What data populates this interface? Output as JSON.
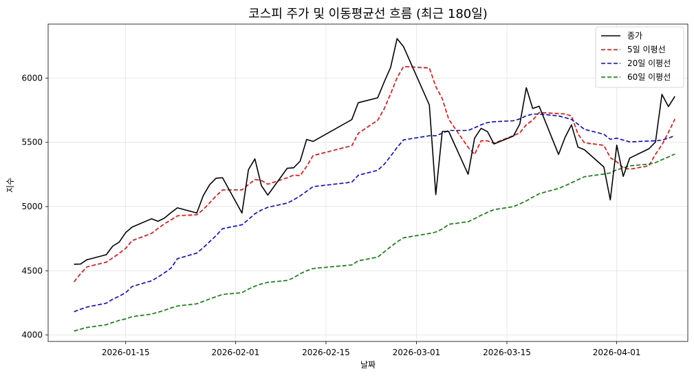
{
  "chart_data": {
    "type": "line",
    "title": "코스피 주가 및 이동평균선 흐름 (최근 180일)",
    "xlabel": "날짜",
    "ylabel": "지수",
    "xlim": [
      "2026-01-03",
      "2026-04-12"
    ],
    "ylim": [
      3950,
      6420
    ],
    "grid": true,
    "legend_position": "top-right",
    "x_ticks": [
      "2026-01-15",
      "2026-02-01",
      "2026-02-15",
      "2026-03-01",
      "2026-03-15",
      "2026-04-01"
    ],
    "y_ticks": [
      4000,
      4500,
      5000,
      5500,
      6000
    ],
    "series": [
      {
        "name": "종가",
        "color": "#000000",
        "dash": "solid",
        "points": [
          [
            "2026-01-07",
            4551
          ],
          [
            "2026-01-08",
            4552
          ],
          [
            "2026-01-09",
            4586
          ],
          [
            "2026-01-12",
            4625
          ],
          [
            "2026-01-13",
            4692
          ],
          [
            "2026-01-14",
            4723
          ],
          [
            "2026-01-15",
            4797
          ],
          [
            "2026-01-16",
            4840
          ],
          [
            "2026-01-19",
            4905
          ],
          [
            "2026-01-20",
            4885
          ],
          [
            "2026-01-21",
            4910
          ],
          [
            "2026-01-22",
            4952
          ],
          [
            "2026-01-23",
            4990
          ],
          [
            "2026-01-26",
            4950
          ],
          [
            "2026-01-27",
            5085
          ],
          [
            "2026-01-28",
            5170
          ],
          [
            "2026-01-29",
            5221
          ],
          [
            "2026-01-30",
            5224
          ],
          [
            "2026-02-02",
            4949
          ],
          [
            "2026-02-03",
            5287
          ],
          [
            "2026-02-04",
            5371
          ],
          [
            "2026-02-05",
            5163
          ],
          [
            "2026-02-06",
            5089
          ],
          [
            "2026-02-09",
            5298
          ],
          [
            "2026-02-10",
            5302
          ],
          [
            "2026-02-11",
            5354
          ],
          [
            "2026-02-12",
            5522
          ],
          [
            "2026-02-13",
            5507
          ],
          [
            "2026-02-19",
            5677
          ],
          [
            "2026-02-20",
            5808
          ],
          [
            "2026-02-23",
            5846
          ],
          [
            "2026-02-24",
            5969
          ],
          [
            "2026-02-25",
            6083
          ],
          [
            "2026-02-26",
            6307
          ],
          [
            "2026-02-27",
            6244
          ],
          [
            "2026-03-03",
            5791
          ],
          [
            "2026-03-04",
            5093
          ],
          [
            "2026-03-05",
            5584
          ],
          [
            "2026-03-06",
            5584
          ],
          [
            "2026-03-09",
            5251
          ],
          [
            "2026-03-10",
            5532
          ],
          [
            "2026-03-11",
            5609
          ],
          [
            "2026-03-12",
            5583
          ],
          [
            "2026-03-13",
            5487
          ],
          [
            "2026-03-16",
            5549
          ],
          [
            "2026-03-17",
            5643
          ],
          [
            "2026-03-18",
            5925
          ],
          [
            "2026-03-19",
            5763
          ],
          [
            "2026-03-20",
            5781
          ],
          [
            "2026-03-23",
            5405
          ],
          [
            "2026-03-24",
            5538
          ],
          [
            "2026-03-25",
            5636
          ],
          [
            "2026-03-26",
            5462
          ],
          [
            "2026-03-27",
            5442
          ],
          [
            "2026-03-30",
            5308
          ],
          [
            "2026-03-31",
            5052
          ],
          [
            "2026-04-01",
            5478
          ],
          [
            "2026-04-02",
            5235
          ],
          [
            "2026-04-03",
            5377
          ],
          [
            "2026-04-06",
            5450
          ],
          [
            "2026-04-07",
            5502
          ],
          [
            "2026-04-08",
            5873
          ],
          [
            "2026-04-09",
            5778
          ],
          [
            "2026-04-10",
            5858
          ]
        ]
      },
      {
        "name": "5일 이평선",
        "color": "#ff0000",
        "dash": "dashed",
        "points": [
          [
            "2026-01-07",
            4414
          ],
          [
            "2026-01-08",
            4478
          ],
          [
            "2026-01-09",
            4531
          ],
          [
            "2026-01-12",
            4567
          ],
          [
            "2026-01-13",
            4601
          ],
          [
            "2026-01-14",
            4636
          ],
          [
            "2026-01-15",
            4675
          ],
          [
            "2026-01-16",
            4735
          ],
          [
            "2026-01-19",
            4791
          ],
          [
            "2026-01-20",
            4830
          ],
          [
            "2026-01-21",
            4866
          ],
          [
            "2026-01-22",
            4896
          ],
          [
            "2026-01-23",
            4928
          ],
          [
            "2026-01-26",
            4937
          ],
          [
            "2026-01-27",
            4977
          ],
          [
            "2026-01-28",
            5029
          ],
          [
            "2026-01-29",
            5083
          ],
          [
            "2026-01-30",
            5130
          ],
          [
            "2026-02-02",
            5130
          ],
          [
            "2026-02-03",
            5171
          ],
          [
            "2026-02-04",
            5210
          ],
          [
            "2026-02-05",
            5203
          ],
          [
            "2026-02-06",
            5174
          ],
          [
            "2026-02-09",
            5224
          ],
          [
            "2026-02-10",
            5245
          ],
          [
            "2026-02-11",
            5241
          ],
          [
            "2026-02-12",
            5313
          ],
          [
            "2026-02-13",
            5397
          ],
          [
            "2026-02-19",
            5474
          ],
          [
            "2026-02-20",
            5570
          ],
          [
            "2026-02-23",
            5672
          ],
          [
            "2026-02-24",
            5761
          ],
          [
            "2026-02-25",
            5877
          ],
          [
            "2026-02-26",
            6003
          ],
          [
            "2026-02-27",
            6090
          ],
          [
            "2026-03-03",
            6079
          ],
          [
            "2026-03-04",
            5934
          ],
          [
            "2026-03-05",
            5840
          ],
          [
            "2026-03-06",
            5679
          ],
          [
            "2026-03-09",
            5461
          ],
          [
            "2026-03-10",
            5407
          ],
          [
            "2026-03-11",
            5512
          ],
          [
            "2026-03-12",
            5512
          ],
          [
            "2026-03-13",
            5492
          ],
          [
            "2026-03-16",
            5552
          ],
          [
            "2026-03-17",
            5574
          ],
          [
            "2026-03-18",
            5637
          ],
          [
            "2026-03-19",
            5673
          ],
          [
            "2026-03-20",
            5732
          ],
          [
            "2026-03-23",
            5724
          ],
          [
            "2026-03-24",
            5720
          ],
          [
            "2026-03-25",
            5705
          ],
          [
            "2026-03-26",
            5564
          ],
          [
            "2026-03-27",
            5497
          ],
          [
            "2026-03-30",
            5477
          ],
          [
            "2026-03-31",
            5380
          ],
          [
            "2026-04-01",
            5348
          ],
          [
            "2026-04-02",
            5303
          ],
          [
            "2026-04-03",
            5290
          ],
          [
            "2026-04-06",
            5318
          ],
          [
            "2026-04-07",
            5408
          ],
          [
            "2026-04-08",
            5481
          ],
          [
            "2026-04-09",
            5578
          ],
          [
            "2026-04-10",
            5681
          ]
        ]
      },
      {
        "name": "20일 이평선",
        "color": "#0000ff",
        "dash": "dashed",
        "points": [
          [
            "2026-01-07",
            4182
          ],
          [
            "2026-01-08",
            4200
          ],
          [
            "2026-01-09",
            4218
          ],
          [
            "2026-01-12",
            4248
          ],
          [
            "2026-01-13",
            4279
          ],
          [
            "2026-01-14",
            4302
          ],
          [
            "2026-01-15",
            4330
          ],
          [
            "2026-01-16",
            4378
          ],
          [
            "2026-01-19",
            4422
          ],
          [
            "2026-01-20",
            4451
          ],
          [
            "2026-01-21",
            4484
          ],
          [
            "2026-01-22",
            4520
          ],
          [
            "2026-01-23",
            4594
          ],
          [
            "2026-01-26",
            4638
          ],
          [
            "2026-01-27",
            4680
          ],
          [
            "2026-01-28",
            4727
          ],
          [
            "2026-01-29",
            4774
          ],
          [
            "2026-01-30",
            4828
          ],
          [
            "2026-02-02",
            4858
          ],
          [
            "2026-02-03",
            4899
          ],
          [
            "2026-02-04",
            4944
          ],
          [
            "2026-02-05",
            4973
          ],
          [
            "2026-02-06",
            4994
          ],
          [
            "2026-02-09",
            5027
          ],
          [
            "2026-02-10",
            5052
          ],
          [
            "2026-02-11",
            5083
          ],
          [
            "2026-02-12",
            5119
          ],
          [
            "2026-02-13",
            5155
          ],
          [
            "2026-02-19",
            5190
          ],
          [
            "2026-02-20",
            5244
          ],
          [
            "2026-02-23",
            5282
          ],
          [
            "2026-02-24",
            5328
          ],
          [
            "2026-02-25",
            5392
          ],
          [
            "2026-02-26",
            5460
          ],
          [
            "2026-02-27",
            5519
          ],
          [
            "2026-03-03",
            5551
          ],
          [
            "2026-03-04",
            5551
          ],
          [
            "2026-03-05",
            5571
          ],
          [
            "2026-03-06",
            5592
          ],
          [
            "2026-03-09",
            5592
          ],
          [
            "2026-03-10",
            5613
          ],
          [
            "2026-03-11",
            5636
          ],
          [
            "2026-03-12",
            5654
          ],
          [
            "2026-03-13",
            5660
          ],
          [
            "2026-03-16",
            5668
          ],
          [
            "2026-03-17",
            5682
          ],
          [
            "2026-03-18",
            5707
          ],
          [
            "2026-03-19",
            5719
          ],
          [
            "2026-03-20",
            5720
          ],
          [
            "2026-03-23",
            5706
          ],
          [
            "2026-03-24",
            5692
          ],
          [
            "2026-03-25",
            5678
          ],
          [
            "2026-03-26",
            5641
          ],
          [
            "2026-03-27",
            5601
          ],
          [
            "2026-03-30",
            5563
          ],
          [
            "2026-03-31",
            5523
          ],
          [
            "2026-04-01",
            5532
          ],
          [
            "2026-04-02",
            5517
          ],
          [
            "2026-04-03",
            5503
          ],
          [
            "2026-04-06",
            5510
          ],
          [
            "2026-04-07",
            5512
          ],
          [
            "2026-04-08",
            5517
          ],
          [
            "2026-04-09",
            5532
          ],
          [
            "2026-04-10",
            5552
          ]
        ]
      },
      {
        "name": "60일 이평선",
        "color": "#008000",
        "dash": "dashed",
        "points": [
          [
            "2026-01-07",
            4031
          ],
          [
            "2026-01-08",
            4046
          ],
          [
            "2026-01-09",
            4059
          ],
          [
            "2026-01-12",
            4080
          ],
          [
            "2026-01-13",
            4098
          ],
          [
            "2026-01-14",
            4114
          ],
          [
            "2026-01-15",
            4126
          ],
          [
            "2026-01-16",
            4143
          ],
          [
            "2026-01-19",
            4163
          ],
          [
            "2026-01-20",
            4177
          ],
          [
            "2026-01-21",
            4193
          ],
          [
            "2026-01-22",
            4211
          ],
          [
            "2026-01-23",
            4226
          ],
          [
            "2026-01-26",
            4243
          ],
          [
            "2026-01-27",
            4262
          ],
          [
            "2026-01-28",
            4280
          ],
          [
            "2026-01-29",
            4299
          ],
          [
            "2026-01-30",
            4316
          ],
          [
            "2026-02-02",
            4330
          ],
          [
            "2026-02-03",
            4358
          ],
          [
            "2026-02-04",
            4380
          ],
          [
            "2026-02-05",
            4398
          ],
          [
            "2026-02-06",
            4410
          ],
          [
            "2026-02-09",
            4425
          ],
          [
            "2026-02-10",
            4446
          ],
          [
            "2026-02-11",
            4477
          ],
          [
            "2026-02-12",
            4500
          ],
          [
            "2026-02-13",
            4518
          ],
          [
            "2026-02-19",
            4546
          ],
          [
            "2026-02-20",
            4578
          ],
          [
            "2026-02-23",
            4607
          ],
          [
            "2026-02-24",
            4646
          ],
          [
            "2026-02-25",
            4687
          ],
          [
            "2026-02-26",
            4725
          ],
          [
            "2026-02-27",
            4757
          ],
          [
            "2026-03-03",
            4790
          ],
          [
            "2026-03-04",
            4802
          ],
          [
            "2026-03-05",
            4825
          ],
          [
            "2026-03-06",
            4862
          ],
          [
            "2026-03-09",
            4882
          ],
          [
            "2026-03-10",
            4906
          ],
          [
            "2026-03-11",
            4932
          ],
          [
            "2026-03-12",
            4955
          ],
          [
            "2026-03-13",
            4976
          ],
          [
            "2026-03-16",
            4999
          ],
          [
            "2026-03-17",
            5021
          ],
          [
            "2026-03-18",
            5044
          ],
          [
            "2026-03-19",
            5073
          ],
          [
            "2026-03-20",
            5100
          ],
          [
            "2026-03-23",
            5141
          ],
          [
            "2026-03-24",
            5162
          ],
          [
            "2026-03-25",
            5185
          ],
          [
            "2026-03-26",
            5209
          ],
          [
            "2026-03-27",
            5232
          ],
          [
            "2026-03-30",
            5253
          ],
          [
            "2026-03-31",
            5262
          ],
          [
            "2026-04-01",
            5286
          ],
          [
            "2026-04-02",
            5300
          ],
          [
            "2026-04-03",
            5317
          ],
          [
            "2026-04-06",
            5330
          ],
          [
            "2026-04-07",
            5342
          ],
          [
            "2026-04-08",
            5365
          ],
          [
            "2026-04-09",
            5386
          ],
          [
            "2026-04-10",
            5409
          ]
        ]
      }
    ]
  }
}
